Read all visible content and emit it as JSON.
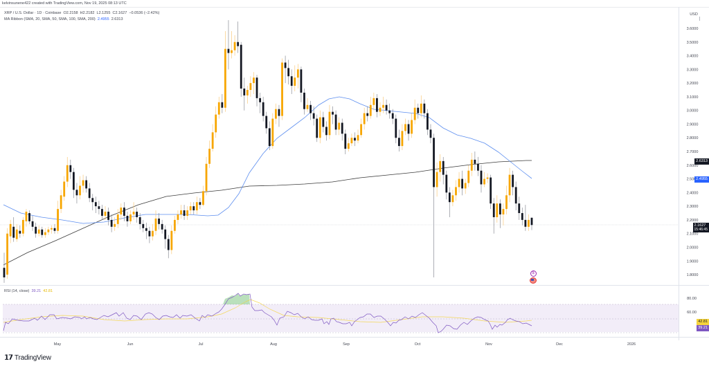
{
  "credit": "kelvinsunene422 created with TradingView.com, Nov 19, 2025 08:13 UTC",
  "header": {
    "symbol": "XRP / U.S. Dollar · 1D · Coinbase",
    "open": "O2.2158",
    "high": "H2.2182",
    "low": "L2.1255",
    "close": "C2.1627",
    "change": "−0.0536 (−2.42%)"
  },
  "indicator": {
    "name": "MA Ribbon (SMA, 20, SMA, 50, SMA, 100, SMA, 200)",
    "value_blue": "2.4955",
    "value_black": "2.6313"
  },
  "rsi": {
    "name": "RSI (14, close)",
    "value": "39.21",
    "ma_value": "42.81"
  },
  "price_axis": {
    "currency": "USD",
    "ticks": [
      "3.6000",
      "3.5000",
      "3.4000",
      "3.3000",
      "3.2000",
      "3.1000",
      "3.0000",
      "2.9000",
      "2.8000",
      "2.7000",
      "2.6000",
      "2.5000",
      "2.4000",
      "2.3000",
      "2.2000",
      "2.1000",
      "2.0000",
      "1.9000",
      "1.8000"
    ],
    "tags": {
      "ma200": "2.6313",
      "ma50": "2.4955",
      "last_price": "2.1627",
      "countdown": "15:46:45"
    }
  },
  "rsi_axis": {
    "ticks": [
      "80.00",
      "60.00"
    ],
    "tags": {
      "ma": "42.81",
      "rsi": "39.21"
    }
  },
  "time_axis": {
    "labels": [
      "May",
      "Jun",
      "Jul",
      "Aug",
      "Sep",
      "Oct",
      "Nov",
      "Dec",
      "2026"
    ]
  },
  "colors": {
    "up": "#f7a600",
    "down": "#131722",
    "ma50": "#5b8def",
    "ma200": "#3a3a3a",
    "rsi": "#7e57c2",
    "rsi_ma": "#f5d33d",
    "rsi_band": "#ede7f6"
  },
  "brand": "TradingView",
  "chart_data": {
    "type": "candlestick",
    "title": "XRP / U.S. Dollar · 1D · Coinbase",
    "ylabel": "USD",
    "ylim": [
      1.76,
      3.72
    ],
    "x_labels": [
      "May",
      "Jun",
      "Jul",
      "Aug",
      "Sep",
      "Oct",
      "Nov",
      "Dec",
      "2026"
    ],
    "last": {
      "open": 2.2158,
      "high": 2.2182,
      "low": 2.1255,
      "close": 2.1627,
      "change": -0.0536,
      "change_pct": -2.42
    },
    "approx_closes": [
      {
        "period": "mid Apr",
        "price": 1.85
      },
      {
        "period": "late Apr",
        "price": 2.2
      },
      {
        "period": "mid May",
        "price": 2.55
      },
      {
        "period": "late May",
        "price": 2.35
      },
      {
        "period": "mid Jun",
        "price": 2.2
      },
      {
        "period": "late Jun",
        "price": 2.05
      },
      {
        "period": "early Jul",
        "price": 2.25
      },
      {
        "period": "mid Jul",
        "price": 3.5
      },
      {
        "period": "late Jul",
        "price": 3.1
      },
      {
        "period": "early Aug",
        "price": 2.95
      },
      {
        "period": "mid Aug",
        "price": 3.25
      },
      {
        "period": "late Aug",
        "price": 2.9
      },
      {
        "period": "mid Sep",
        "price": 3.05
      },
      {
        "period": "late Sep",
        "price": 2.85
      },
      {
        "period": "early Oct",
        "price": 3.0
      },
      {
        "period": "Oct 10 crash low",
        "price": 1.78
      },
      {
        "period": "mid Oct",
        "price": 2.4
      },
      {
        "period": "late Oct",
        "price": 2.6
      },
      {
        "period": "early Nov",
        "price": 2.25
      },
      {
        "period": "mid Nov",
        "price": 2.5
      },
      {
        "period": "Nov 19",
        "price": 2.1627
      }
    ],
    "series": [
      {
        "name": "SMA 50",
        "last": 2.4955
      },
      {
        "name": "SMA 200",
        "last": 2.6313
      }
    ],
    "rsi": {
      "period": 14,
      "value": 39.21,
      "ma": 42.81,
      "ylim": [
        20,
        90
      ],
      "bands": [
        70,
        50,
        30
      ],
      "peak_overbought": "late Jul ~85"
    }
  }
}
